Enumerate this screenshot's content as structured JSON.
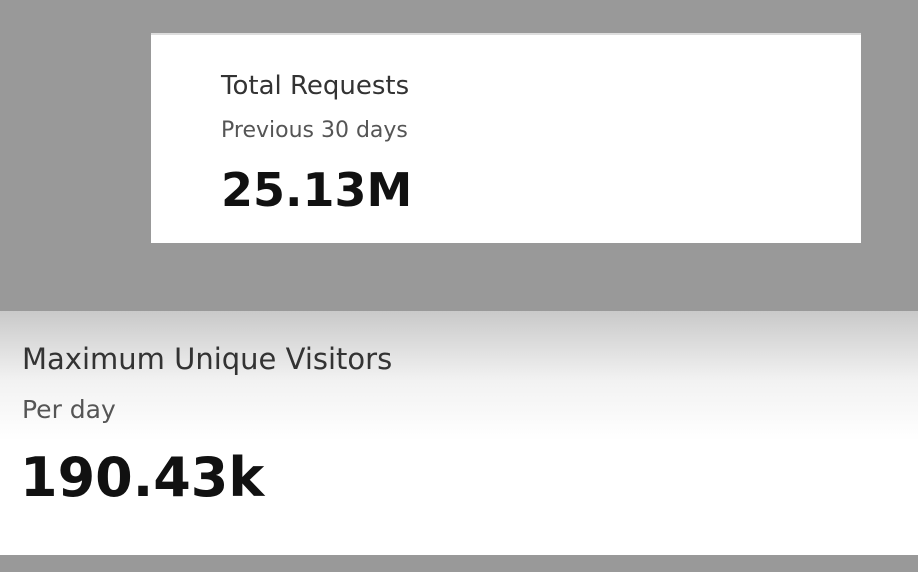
{
  "cards": [
    {
      "title": "Total Requests",
      "subtitle": "Previous 30 days",
      "value": "25.13M"
    },
    {
      "title": "Maximum Unique Visitors",
      "subtitle": "Per day",
      "value": "190.43k"
    }
  ]
}
